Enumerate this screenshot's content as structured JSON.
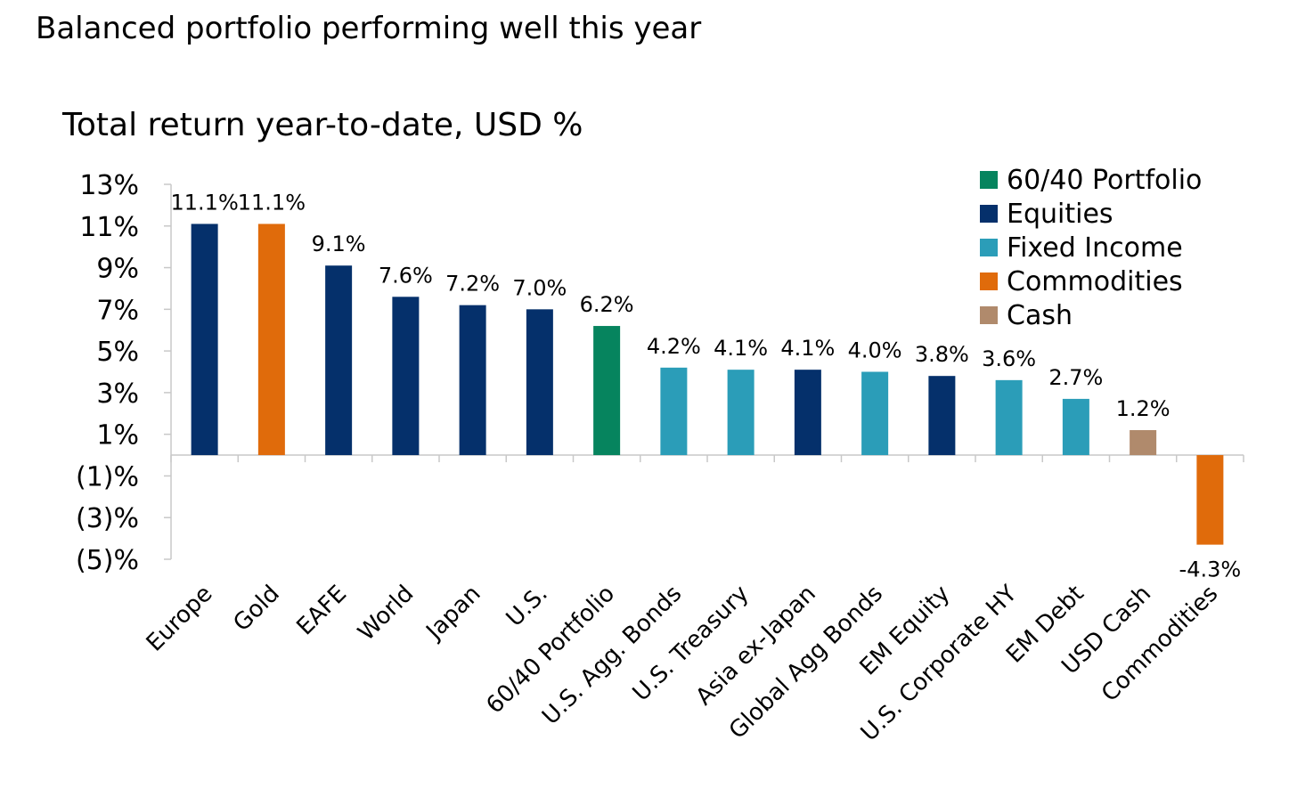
{
  "headline": "Balanced portfolio performing well this year",
  "chart_data": {
    "type": "bar",
    "title": "Total return year-to-date, USD %",
    "xlabel": "",
    "ylabel": "",
    "ylim": [
      -5,
      13
    ],
    "y_ticks": [
      13,
      11,
      9,
      7,
      5,
      3,
      1,
      -1,
      -3,
      -5
    ],
    "y_tick_labels": [
      "13%",
      "11%",
      "9%",
      "7%",
      "5%",
      "3%",
      "1%",
      "(1)%",
      "(3)%",
      "(5)%"
    ],
    "grid": false,
    "legend_position": "top-right",
    "categories": [
      "Europe",
      "Gold",
      "EAFE",
      "World",
      "Japan",
      "U.S.",
      "60/40 Portfolio",
      "U.S. Agg. Bonds",
      "U.S. Treasury",
      "Asia ex-Japan",
      "Global Agg Bonds",
      "EM Equity",
      "U.S. Corporate HY",
      "EM Debt",
      "USD Cash",
      "Commodities"
    ],
    "values": [
      11.1,
      11.1,
      9.1,
      7.6,
      7.2,
      7.0,
      6.2,
      4.2,
      4.1,
      4.1,
      4.0,
      3.8,
      3.6,
      2.7,
      1.2,
      -4.3
    ],
    "value_labels": [
      "11.1%",
      "11.1%",
      "9.1%",
      "7.6%",
      "7.2%",
      "7.0%",
      "6.2%",
      "4.2%",
      "4.1%",
      "4.1%",
      "4.0%",
      "3.8%",
      "3.6%",
      "2.7%",
      "1.2%",
      "-4.3%"
    ],
    "bar_groups": [
      "Equities",
      "Commodities",
      "Equities",
      "Equities",
      "Equities",
      "Equities",
      "60/40 Portfolio",
      "Fixed Income",
      "Fixed Income",
      "Equities",
      "Fixed Income",
      "Equities",
      "Fixed Income",
      "Fixed Income",
      "Cash",
      "Commodities"
    ],
    "legend": [
      {
        "name": "60/40 Portfolio",
        "color": "#06845e"
      },
      {
        "name": "Equities",
        "color": "#05306b"
      },
      {
        "name": "Fixed Income",
        "color": "#2b9db8"
      },
      {
        "name": "Commodities",
        "color": "#e06b0b"
      },
      {
        "name": "Cash",
        "color": "#b08a6c"
      }
    ]
  }
}
